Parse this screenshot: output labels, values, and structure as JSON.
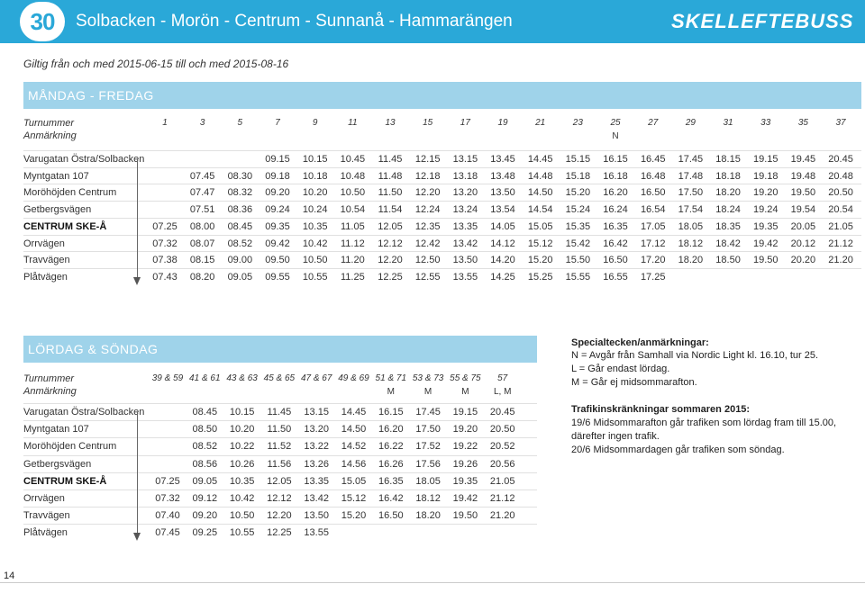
{
  "header": {
    "route_number": "30",
    "title": "Solbacken - Morön - Centrum - Sunnanå - Hammarängen",
    "brand": "SKELLEFTEBUSS"
  },
  "validity": "Giltig från och med 2015-06-15 till och med 2015-08-16",
  "weekday": {
    "title": "MÅNDAG - FREDAG",
    "turnummer_label": "Turnummer",
    "anmarkning_label": "Anmärkning",
    "trips": [
      "1",
      "3",
      "5",
      "7",
      "9",
      "11",
      "13",
      "15",
      "17",
      "19",
      "21",
      "23",
      "25",
      "27",
      "29",
      "31",
      "33",
      "35",
      "37"
    ],
    "remarks": [
      "",
      "",
      "",
      "",
      "",
      "",
      "",
      "",
      "",
      "",
      "",
      "",
      "N",
      "",
      "",
      "",
      "",
      "",
      ""
    ],
    "stops": [
      {
        "name": "Varugatan Östra/Solbacken",
        "bold": false,
        "times": [
          "",
          "",
          "",
          "09.15",
          "10.15",
          "10.45",
          "11.45",
          "12.15",
          "13.15",
          "13.45",
          "14.45",
          "15.15",
          "16.15",
          "16.45",
          "17.45",
          "18.15",
          "19.15",
          "19.45",
          "20.45"
        ]
      },
      {
        "name": "Myntgatan 107",
        "bold": false,
        "times": [
          "",
          "07.45",
          "08.30",
          "09.18",
          "10.18",
          "10.48",
          "11.48",
          "12.18",
          "13.18",
          "13.48",
          "14.48",
          "15.18",
          "16.18",
          "16.48",
          "17.48",
          "18.18",
          "19.18",
          "19.48",
          "20.48"
        ]
      },
      {
        "name": "Moröhöjden Centrum",
        "bold": false,
        "times": [
          "",
          "07.47",
          "08.32",
          "09.20",
          "10.20",
          "10.50",
          "11.50",
          "12.20",
          "13.20",
          "13.50",
          "14.50",
          "15.20",
          "16.20",
          "16.50",
          "17.50",
          "18.20",
          "19.20",
          "19.50",
          "20.50"
        ]
      },
      {
        "name": "Getbergsvägen",
        "bold": false,
        "times": [
          "",
          "07.51",
          "08.36",
          "09.24",
          "10.24",
          "10.54",
          "11.54",
          "12.24",
          "13.24",
          "13.54",
          "14.54",
          "15.24",
          "16.24",
          "16.54",
          "17.54",
          "18.24",
          "19.24",
          "19.54",
          "20.54"
        ]
      },
      {
        "name": "CENTRUM SKE-Å",
        "bold": true,
        "times": [
          "07.25",
          "08.00",
          "08.45",
          "09.35",
          "10.35",
          "11.05",
          "12.05",
          "12.35",
          "13.35",
          "14.05",
          "15.05",
          "15.35",
          "16.35",
          "17.05",
          "18.05",
          "18.35",
          "19.35",
          "20.05",
          "21.05"
        ]
      },
      {
        "name": "Orrvägen",
        "bold": false,
        "times": [
          "07.32",
          "08.07",
          "08.52",
          "09.42",
          "10.42",
          "11.12",
          "12.12",
          "12.42",
          "13.42",
          "14.12",
          "15.12",
          "15.42",
          "16.42",
          "17.12",
          "18.12",
          "18.42",
          "19.42",
          "20.12",
          "21.12"
        ]
      },
      {
        "name": "Travvägen",
        "bold": false,
        "times": [
          "07.38",
          "08.15",
          "09.00",
          "09.50",
          "10.50",
          "11.20",
          "12.20",
          "12.50",
          "13.50",
          "14.20",
          "15.20",
          "15.50",
          "16.50",
          "17.20",
          "18.20",
          "18.50",
          "19.50",
          "20.20",
          "21.20"
        ]
      },
      {
        "name": "Plåtvägen",
        "bold": false,
        "times": [
          "07.43",
          "08.20",
          "09.05",
          "09.55",
          "10.55",
          "11.25",
          "12.25",
          "12.55",
          "13.55",
          "14.25",
          "15.25",
          "15.55",
          "16.55",
          "17.25",
          "",
          "",
          "",
          "",
          ""
        ]
      }
    ]
  },
  "weekend": {
    "title": "LÖRDAG & SÖNDAG",
    "turnummer_label": "Turnummer",
    "anmarkning_label": "Anmärkning",
    "trips": [
      "39 & 59",
      "41 & 61",
      "43 & 63",
      "45 & 65",
      "47 & 67",
      "49 & 69",
      "51 & 71",
      "53 & 73",
      "55 & 75",
      "57"
    ],
    "remarks": [
      "",
      "",
      "",
      "",
      "",
      "",
      "M",
      "M",
      "M",
      "L, M"
    ],
    "stops": [
      {
        "name": "Varugatan Östra/Solbacken",
        "bold": false,
        "times": [
          "",
          "08.45",
          "10.15",
          "11.45",
          "13.15",
          "14.45",
          "16.15",
          "17.45",
          "19.15",
          "20.45"
        ]
      },
      {
        "name": "Myntgatan 107",
        "bold": false,
        "times": [
          "",
          "08.50",
          "10.20",
          "11.50",
          "13.20",
          "14.50",
          "16.20",
          "17.50",
          "19.20",
          "20.50"
        ]
      },
      {
        "name": "Moröhöjden Centrum",
        "bold": false,
        "times": [
          "",
          "08.52",
          "10.22",
          "11.52",
          "13.22",
          "14.52",
          "16.22",
          "17.52",
          "19.22",
          "20.52"
        ]
      },
      {
        "name": "Getbergsvägen",
        "bold": false,
        "times": [
          "",
          "08.56",
          "10.26",
          "11.56",
          "13.26",
          "14.56",
          "16.26",
          "17.56",
          "19.26",
          "20.56"
        ]
      },
      {
        "name": "CENTRUM SKE-Å",
        "bold": true,
        "times": [
          "07.25",
          "09.05",
          "10.35",
          "12.05",
          "13.35",
          "15.05",
          "16.35",
          "18.05",
          "19.35",
          "21.05"
        ]
      },
      {
        "name": "Orrvägen",
        "bold": false,
        "times": [
          "07.32",
          "09.12",
          "10.42",
          "12.12",
          "13.42",
          "15.12",
          "16.42",
          "18.12",
          "19.42",
          "21.12"
        ]
      },
      {
        "name": "Travvägen",
        "bold": false,
        "times": [
          "07.40",
          "09.20",
          "10.50",
          "12.20",
          "13.50",
          "15.20",
          "16.50",
          "18.20",
          "19.50",
          "21.20"
        ]
      },
      {
        "name": "Plåtvägen",
        "bold": false,
        "times": [
          "07.45",
          "09.25",
          "10.55",
          "12.25",
          "13.55",
          "",
          "",
          "",
          "",
          ""
        ]
      }
    ]
  },
  "notes": {
    "special_title": "Specialtecken/anmärkningar:",
    "special_lines": [
      "N = Avgår från Samhall via Nordic Light kl. 16.10, tur 25.",
      "L = Går endast lördag.",
      "M = Går ej midsommarafton."
    ],
    "traffic_title": "Trafikinskränkningar sommaren 2015:",
    "traffic_lines": [
      "19/6 Midsommarafton går trafiken som lördag fram till 15.00,",
      "därefter ingen trafik.",
      "20/6 Midsommardagen går trafiken som söndag."
    ]
  },
  "page_number": "14",
  "colors": {
    "header_bg": "#2aa8d8",
    "section_bg": "#9fd3ea",
    "text": "#222222"
  }
}
